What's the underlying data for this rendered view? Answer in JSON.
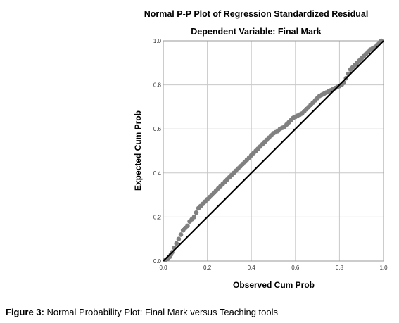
{
  "chart_data": {
    "type": "scatter",
    "title": "Normal P-P Plot of Regression Standardized Residual",
    "subtitle": "Dependent Variable: Final Mark",
    "xlabel": "Observed Cum Prob",
    "ylabel": "Expected Cum Prob",
    "xlim": [
      0,
      1
    ],
    "ylim": [
      0,
      1
    ],
    "xticks": [
      "0.0",
      "0.2",
      "0.4",
      "0.6",
      "0.8",
      "1.0"
    ],
    "yticks": [
      "0.0",
      "0.2",
      "0.4",
      "0.6",
      "0.8",
      "1.0"
    ],
    "grid": true,
    "legend": "none",
    "point_color": "#808080",
    "line_color": "#000000",
    "reference_line": {
      "x": [
        0,
        1
      ],
      "y": [
        0,
        1
      ]
    },
    "points": {
      "x": [
        0.01,
        0.02,
        0.03,
        0.035,
        0.04,
        0.05,
        0.06,
        0.07,
        0.08,
        0.09,
        0.1,
        0.11,
        0.12,
        0.13,
        0.14,
        0.15,
        0.16,
        0.17,
        0.18,
        0.19,
        0.2,
        0.21,
        0.22,
        0.23,
        0.24,
        0.25,
        0.26,
        0.27,
        0.28,
        0.29,
        0.3,
        0.31,
        0.32,
        0.33,
        0.34,
        0.35,
        0.36,
        0.37,
        0.38,
        0.39,
        0.4,
        0.41,
        0.42,
        0.43,
        0.44,
        0.45,
        0.46,
        0.47,
        0.48,
        0.49,
        0.5,
        0.51,
        0.52,
        0.53,
        0.54,
        0.55,
        0.56,
        0.57,
        0.58,
        0.59,
        0.6,
        0.61,
        0.62,
        0.63,
        0.64,
        0.65,
        0.66,
        0.67,
        0.68,
        0.69,
        0.7,
        0.71,
        0.72,
        0.73,
        0.74,
        0.75,
        0.76,
        0.77,
        0.78,
        0.79,
        0.8,
        0.81,
        0.82,
        0.83,
        0.84,
        0.85,
        0.86,
        0.87,
        0.88,
        0.89,
        0.9,
        0.91,
        0.92,
        0.93,
        0.94,
        0.95,
        0.96,
        0.97,
        0.98,
        0.99
      ],
      "y": [
        0.005,
        0.01,
        0.02,
        0.03,
        0.04,
        0.06,
        0.08,
        0.1,
        0.12,
        0.14,
        0.15,
        0.16,
        0.18,
        0.19,
        0.2,
        0.22,
        0.24,
        0.25,
        0.26,
        0.27,
        0.28,
        0.29,
        0.3,
        0.31,
        0.32,
        0.33,
        0.34,
        0.35,
        0.36,
        0.37,
        0.38,
        0.39,
        0.4,
        0.41,
        0.42,
        0.43,
        0.44,
        0.45,
        0.46,
        0.47,
        0.48,
        0.49,
        0.5,
        0.51,
        0.52,
        0.53,
        0.54,
        0.55,
        0.56,
        0.57,
        0.58,
        0.585,
        0.59,
        0.6,
        0.605,
        0.61,
        0.62,
        0.63,
        0.64,
        0.65,
        0.655,
        0.66,
        0.665,
        0.67,
        0.68,
        0.69,
        0.7,
        0.71,
        0.72,
        0.73,
        0.74,
        0.75,
        0.755,
        0.76,
        0.765,
        0.77,
        0.775,
        0.78,
        0.785,
        0.79,
        0.795,
        0.8,
        0.81,
        0.83,
        0.85,
        0.87,
        0.88,
        0.89,
        0.9,
        0.91,
        0.92,
        0.93,
        0.94,
        0.95,
        0.96,
        0.965,
        0.97,
        0.98,
        0.99,
        1.0
      ]
    }
  },
  "caption": {
    "label": "Figure 3:",
    "text": " Normal Probability Plot: Final Mark versus Teaching tools"
  }
}
